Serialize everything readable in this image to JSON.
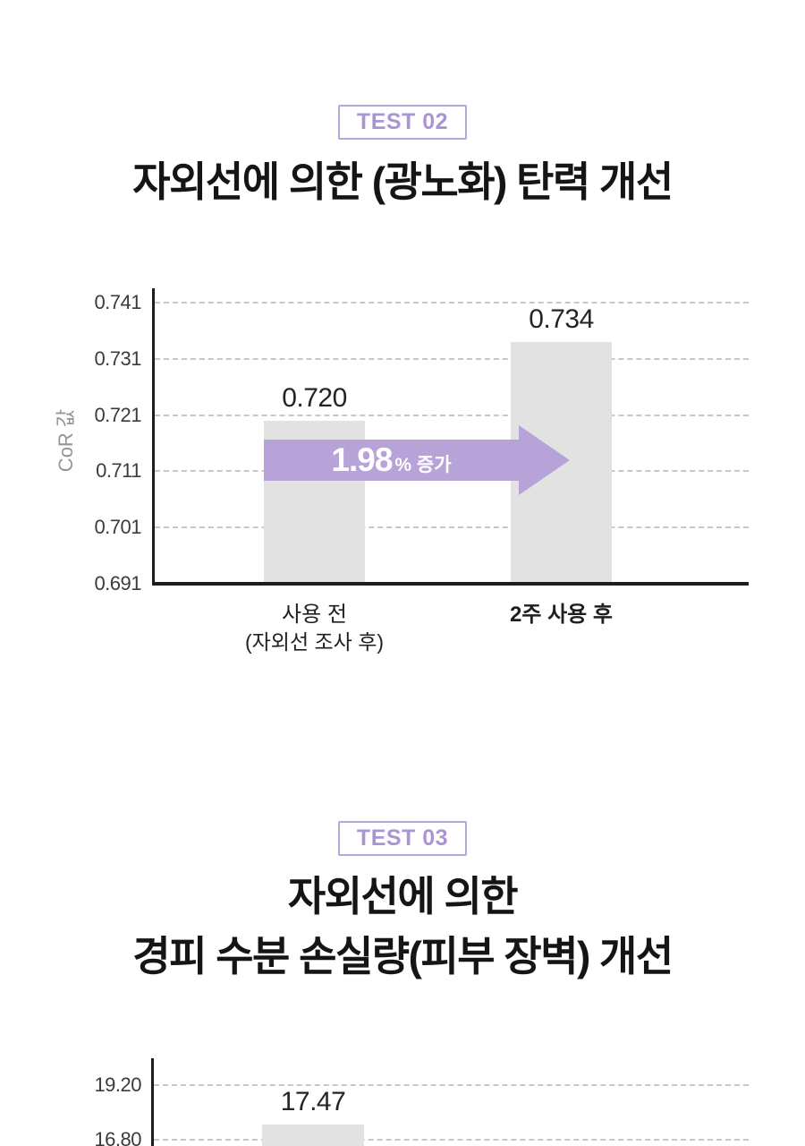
{
  "page": {
    "background": "#ffffff",
    "accent_purple": "#b7a3d8",
    "badge_text_color": "#a994d4",
    "bar_color": "#e2e2e2"
  },
  "sections": [
    {
      "badge": "TEST 02",
      "title_lines": [
        "자외선에 의한 (광노화) 탄력 개선"
      ]
    },
    {
      "badge": "TEST 03",
      "title_lines": [
        "자외선에 의한",
        "경피 수분 손실량(피부 장벽) 개선"
      ]
    }
  ],
  "chart_data": [
    {
      "type": "bar",
      "title": "자외선에 의한 (광노화) 탄력 개선",
      "xlabel": "",
      "ylabel": "CoR 값",
      "categories": [
        "사용 전\n(자외선 조사 후)",
        "2주 사용 후"
      ],
      "categories_bold": [
        false,
        true
      ],
      "values": [
        0.72,
        0.734
      ],
      "bar_labels": [
        "0.720",
        "0.734"
      ],
      "yticks": [
        0.691,
        0.701,
        0.711,
        0.721,
        0.731,
        0.741
      ],
      "ylim": [
        0.691,
        0.7435
      ],
      "grid": true,
      "grid_style": "dashed",
      "bar_color": "#e2e2e2",
      "annotation": {
        "shape": "right-arrow",
        "color": "#b7a3d8",
        "value_text": "1.98",
        "suffix_text": "% 증가",
        "meaning": "increase from first bar to second bar"
      }
    },
    {
      "type": "bar",
      "title": "자외선에 의한 경피 수분 손실량(피부 장벽) 개선",
      "xlabel": "",
      "ylabel": "",
      "categories": [],
      "values": [
        17.47
      ],
      "bar_labels": [
        "17.47"
      ],
      "yticks": [
        16.8,
        19.2
      ],
      "ytick_labels": [
        "16.80",
        "19.20"
      ],
      "ylim_visible": [
        16.8,
        19.2
      ],
      "grid": true,
      "grid_style": "dashed",
      "bar_color": "#e2e2e2",
      "clipped_at_page_bottom": true
    }
  ]
}
